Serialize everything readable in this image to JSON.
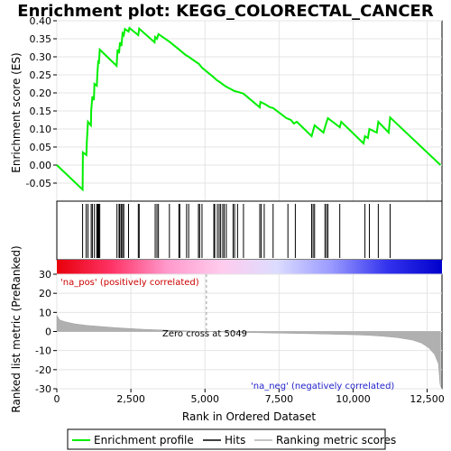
{
  "chart_data": {
    "type": "line",
    "title": "Enrichment plot: KEGG_COLORECTAL_CANCER",
    "xlabel": "Rank in Ordered Dataset",
    "ylabel_top": "Enrichment score (ES)",
    "ylabel_bottom": "Ranked list metric (PreRanked)",
    "xlim": [
      0,
      13000
    ],
    "ylim_top": [
      -0.1,
      0.4
    ],
    "ylim_bottom": [
      -30,
      30
    ],
    "x_ticks": [
      "0",
      "2,500",
      "5,000",
      "7,500",
      "10,000",
      "12,500"
    ],
    "x_tick_values": [
      0,
      2500,
      5000,
      7500,
      10000,
      12500
    ],
    "y_ticks_top": [
      "-0.05",
      "0.00",
      "0.05",
      "0.10",
      "0.15",
      "0.20",
      "0.25",
      "0.30",
      "0.35",
      "0.40"
    ],
    "y_tick_values_top": [
      -0.05,
      0,
      0.05,
      0.1,
      0.15,
      0.2,
      0.25,
      0.3,
      0.35,
      0.4
    ],
    "y_ticks_bottom": [
      "-30",
      "-20",
      "-10",
      "0",
      "10",
      "20",
      "30"
    ],
    "y_tick_values_bottom": [
      -30,
      -20,
      -10,
      0,
      10,
      20,
      30
    ],
    "pos_label": "'na_pos' (positively correlated)",
    "neg_label": "'na_neg' (negatively correlated)",
    "zero_cross_label": "Zero cross at 5049",
    "zero_cross": 5049,
    "n_genes": 12950,
    "es_series": {
      "name": "Enrichment profile",
      "color": "#00ee00",
      "points": [
        [
          0,
          0.0
        ],
        [
          870,
          -0.068
        ],
        [
          880,
          0.035
        ],
        [
          1000,
          0.028
        ],
        [
          1010,
          0.06
        ],
        [
          1050,
          0.12
        ],
        [
          1150,
          0.11
        ],
        [
          1160,
          0.15
        ],
        [
          1200,
          0.19
        ],
        [
          1250,
          0.18
        ],
        [
          1270,
          0.225
        ],
        [
          1350,
          0.22
        ],
        [
          1370,
          0.255
        ],
        [
          1400,
          0.29
        ],
        [
          1420,
          0.28
        ],
        [
          1450,
          0.32
        ],
        [
          2020,
          0.275
        ],
        [
          2050,
          0.32
        ],
        [
          2100,
          0.31
        ],
        [
          2130,
          0.34
        ],
        [
          2180,
          0.33
        ],
        [
          2220,
          0.365
        ],
        [
          2260,
          0.36
        ],
        [
          2300,
          0.377
        ],
        [
          2420,
          0.37
        ],
        [
          2450,
          0.38
        ],
        [
          2750,
          0.36
        ],
        [
          2780,
          0.378
        ],
        [
          3300,
          0.34
        ],
        [
          3320,
          0.355
        ],
        [
          3380,
          0.35
        ],
        [
          3430,
          0.363
        ],
        [
          3800,
          0.342
        ],
        [
          4100,
          0.322
        ],
        [
          4350,
          0.305
        ],
        [
          4450,
          0.3
        ],
        [
          4800,
          0.28
        ],
        [
          4900,
          0.27
        ],
        [
          5300,
          0.243
        ],
        [
          5400,
          0.235
        ],
        [
          5500,
          0.23
        ],
        [
          5600,
          0.224
        ],
        [
          5700,
          0.218
        ],
        [
          6000,
          0.205
        ],
        [
          6100,
          0.203
        ],
        [
          6300,
          0.198
        ],
        [
          6850,
          0.16
        ],
        [
          6870,
          0.175
        ],
        [
          7000,
          0.17
        ],
        [
          7200,
          0.16
        ],
        [
          7300,
          0.158
        ],
        [
          7750,
          0.13
        ],
        [
          7900,
          0.125
        ],
        [
          8000,
          0.115
        ],
        [
          8100,
          0.12
        ],
        [
          8600,
          0.08
        ],
        [
          8650,
          0.095
        ],
        [
          8700,
          0.11
        ],
        [
          9000,
          0.09
        ],
        [
          9050,
          0.105
        ],
        [
          9100,
          0.118
        ],
        [
          9150,
          0.13
        ],
        [
          9550,
          0.105
        ],
        [
          9600,
          0.12
        ],
        [
          10350,
          0.06
        ],
        [
          10400,
          0.08
        ],
        [
          10500,
          0.075
        ],
        [
          10550,
          0.1
        ],
        [
          10800,
          0.09
        ],
        [
          10850,
          0.12
        ],
        [
          11200,
          0.09
        ],
        [
          11250,
          0.132
        ],
        [
          12950,
          0.0
        ]
      ]
    },
    "hits_series": {
      "name": "Hits",
      "color": "#000000",
      "positions": [
        870,
        990,
        1050,
        1160,
        1200,
        1270,
        1350,
        1370,
        1400,
        1420,
        1450,
        2030,
        2100,
        2130,
        2180,
        2220,
        2260,
        2420,
        2750,
        2780,
        3320,
        3380,
        3430,
        3800,
        4120,
        4150,
        4380,
        4450,
        4780,
        4820,
        4900,
        5300,
        5330,
        5420,
        5480,
        5530,
        5600,
        5650,
        5720,
        5950,
        6000,
        6100,
        6300,
        6850,
        6900,
        7000,
        7300,
        7800,
        8050,
        8600,
        8650,
        8700,
        9050,
        9100,
        9150,
        9550,
        10400,
        10550,
        10850,
        11250
      ]
    },
    "metric_series": {
      "name": "Ranking metric scores",
      "color": "#b0b0b0",
      "points": [
        [
          0,
          8.5
        ],
        [
          100,
          6.0
        ],
        [
          300,
          5.0
        ],
        [
          600,
          4.0
        ],
        [
          1000,
          3.2
        ],
        [
          1500,
          2.6
        ],
        [
          2000,
          2.0
        ],
        [
          2500,
          1.5
        ],
        [
          3000,
          1.1
        ],
        [
          3500,
          0.8
        ],
        [
          4000,
          0.5
        ],
        [
          4500,
          0.25
        ],
        [
          5049,
          0.0
        ],
        [
          5500,
          -0.2
        ],
        [
          6000,
          -0.4
        ],
        [
          7000,
          -0.7
        ],
        [
          8000,
          -1.0
        ],
        [
          9000,
          -1.3
        ],
        [
          10000,
          -1.7
        ],
        [
          10500,
          -2.0
        ],
        [
          11000,
          -2.5
        ],
        [
          11500,
          -3.2
        ],
        [
          12000,
          -4.5
        ],
        [
          12300,
          -6.0
        ],
        [
          12550,
          -8.5
        ],
        [
          12750,
          -12.0
        ],
        [
          12880,
          -17.0
        ],
        [
          12930,
          -27.0
        ],
        [
          12950,
          -29.0
        ]
      ]
    },
    "colorbar_stops": [
      "#e8000b",
      "#ff3366",
      "#ff99cc",
      "#ffccee",
      "#dcdcff",
      "#9999ff",
      "#3333ee",
      "#0000cc"
    ]
  },
  "legend": {
    "items": [
      {
        "label": "Enrichment profile",
        "color": "#00ee00"
      },
      {
        "label": "Hits",
        "color": "#000000"
      },
      {
        "label": "Ranking metric scores",
        "color": "#b0b0b0"
      }
    ]
  }
}
